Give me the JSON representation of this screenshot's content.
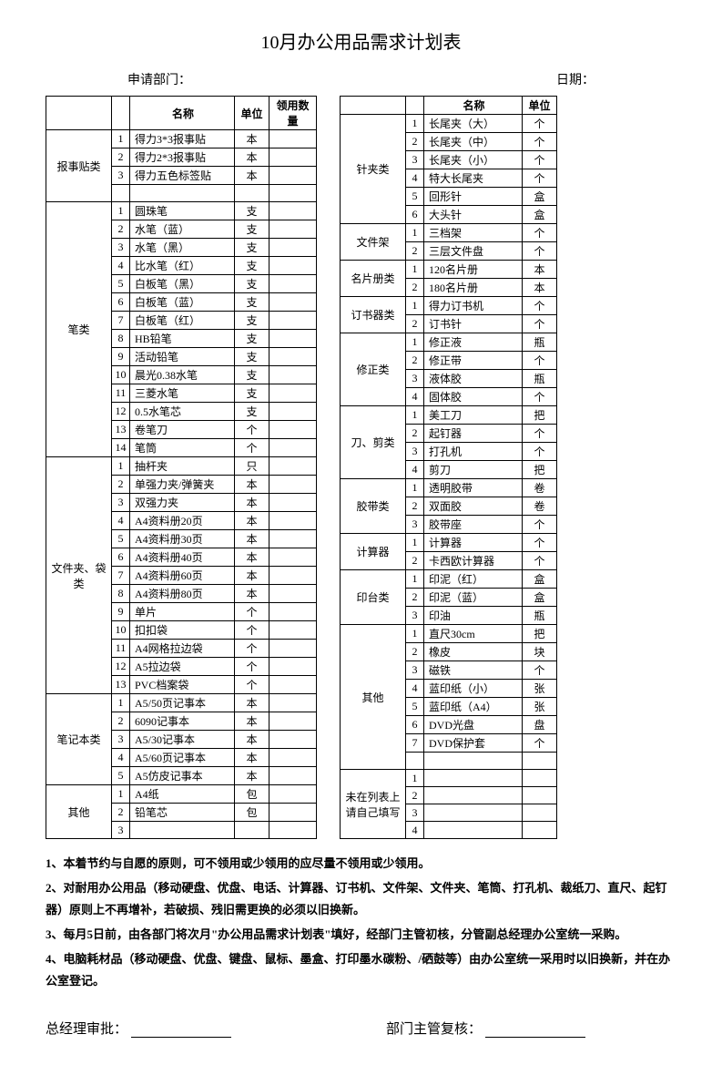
{
  "title": "10月办公用品需求计划表",
  "header": {
    "dept_label": "申请部门：",
    "date_label": "日期："
  },
  "left_table": {
    "headers": {
      "name": "名称",
      "unit": "单位",
      "qty": "领用数量"
    },
    "groups": [
      {
        "category": "报事贴类",
        "rows": [
          {
            "n": "1",
            "name": "得力3*3报事贴",
            "unit": "本"
          },
          {
            "n": "2",
            "name": "得力2*3报事贴",
            "unit": "本"
          },
          {
            "n": "3",
            "name": "得力五色标签贴",
            "unit": "本"
          }
        ],
        "blank": 1
      },
      {
        "category": "笔类",
        "rows": [
          {
            "n": "1",
            "name": "圆珠笔",
            "unit": "支"
          },
          {
            "n": "2",
            "name": "水笔（蓝）",
            "unit": "支"
          },
          {
            "n": "3",
            "name": "水笔（黑）",
            "unit": "支"
          },
          {
            "n": "4",
            "name": "比水笔（红）",
            "unit": "支"
          },
          {
            "n": "5",
            "name": "白板笔（黑）",
            "unit": "支"
          },
          {
            "n": "6",
            "name": "白板笔（蓝）",
            "unit": "支"
          },
          {
            "n": "7",
            "name": "白板笔（红）",
            "unit": "支"
          },
          {
            "n": "8",
            "name": "HB铅笔",
            "unit": "支"
          },
          {
            "n": "9",
            "name": "活动铅笔",
            "unit": "支"
          },
          {
            "n": "10",
            "name": "晨光0.38水笔",
            "unit": "支"
          },
          {
            "n": "11",
            "name": "三菱水笔",
            "unit": "支"
          },
          {
            "n": "12",
            "name": "0.5水笔芯",
            "unit": "支"
          },
          {
            "n": "13",
            "name": "卷笔刀",
            "unit": "个"
          },
          {
            "n": "14",
            "name": "笔筒",
            "unit": "个"
          }
        ],
        "blank": 0
      },
      {
        "category": "文件夹、袋类",
        "rows": [
          {
            "n": "1",
            "name": "抽杆夹",
            "unit": "只"
          },
          {
            "n": "2",
            "name": "单强力夹/弹簧夹",
            "unit": "本"
          },
          {
            "n": "3",
            "name": "双强力夹",
            "unit": "本"
          },
          {
            "n": "4",
            "name": "A4资料册20页",
            "unit": "本"
          },
          {
            "n": "5",
            "name": "A4资料册30页",
            "unit": "本"
          },
          {
            "n": "6",
            "name": "A4资料册40页",
            "unit": "本"
          },
          {
            "n": "7",
            "name": "A4资料册60页",
            "unit": "本"
          },
          {
            "n": "8",
            "name": "A4资料册80页",
            "unit": "本"
          },
          {
            "n": "9",
            "name": "单片",
            "unit": "个"
          },
          {
            "n": "10",
            "name": "扣扣袋",
            "unit": "个"
          },
          {
            "n": "11",
            "name": "A4网格拉边袋",
            "unit": "个"
          },
          {
            "n": "12",
            "name": "A5拉边袋",
            "unit": "个"
          },
          {
            "n": "13",
            "name": "PVC档案袋",
            "unit": "个"
          }
        ],
        "blank": 0
      },
      {
        "category": "笔记本类",
        "rows": [
          {
            "n": "1",
            "name": "A5/50页记事本",
            "unit": "本"
          },
          {
            "n": "2",
            "name": "6090记事本",
            "unit": "本"
          },
          {
            "n": "3",
            "name": "A5/30记事本",
            "unit": "本"
          },
          {
            "n": "4",
            "name": "A5/60页记事本",
            "unit": "本"
          },
          {
            "n": "5",
            "name": "A5仿皮记事本",
            "unit": "本"
          }
        ],
        "blank": 0
      },
      {
        "category": "其他",
        "rows": [
          {
            "n": "1",
            "name": "A4纸",
            "unit": "包"
          },
          {
            "n": "2",
            "name": "铅笔芯",
            "unit": "包"
          },
          {
            "n": "3",
            "name": "",
            "unit": ""
          }
        ],
        "blank": 0
      }
    ]
  },
  "right_table": {
    "headers": {
      "name": "名称",
      "unit": "单位"
    },
    "groups": [
      {
        "category": "针夹类",
        "rows": [
          {
            "n": "1",
            "name": "长尾夹（大）",
            "unit": "个"
          },
          {
            "n": "2",
            "name": "长尾夹（中）",
            "unit": "个"
          },
          {
            "n": "3",
            "name": "长尾夹（小）",
            "unit": "个"
          },
          {
            "n": "4",
            "name": "特大长尾夹",
            "unit": "个"
          },
          {
            "n": "5",
            "name": "回形针",
            "unit": "盒"
          },
          {
            "n": "6",
            "name": "大头针",
            "unit": "盒"
          }
        ],
        "blank": 0
      },
      {
        "category": "文件架",
        "rows": [
          {
            "n": "1",
            "name": "三档架",
            "unit": "个"
          },
          {
            "n": "2",
            "name": "三层文件盘",
            "unit": "个"
          }
        ],
        "blank": 0
      },
      {
        "category": "名片册类",
        "rows": [
          {
            "n": "1",
            "name": "120名片册",
            "unit": "本"
          },
          {
            "n": "2",
            "name": "180名片册",
            "unit": "本"
          }
        ],
        "blank": 0
      },
      {
        "category": "订书器类",
        "rows": [
          {
            "n": "1",
            "name": "得力订书机",
            "unit": "个"
          },
          {
            "n": "2",
            "name": "订书针",
            "unit": "个"
          }
        ],
        "blank": 0
      },
      {
        "category": "修正类",
        "rows": [
          {
            "n": "1",
            "name": "修正液",
            "unit": "瓶"
          },
          {
            "n": "2",
            "name": "修正带",
            "unit": "个"
          },
          {
            "n": "3",
            "name": "液体胶",
            "unit": "瓶"
          },
          {
            "n": "4",
            "name": "固体胶",
            "unit": "个"
          }
        ],
        "blank": 0
      },
      {
        "category": "刀、剪类",
        "rows": [
          {
            "n": "1",
            "name": "美工刀",
            "unit": "把"
          },
          {
            "n": "2",
            "name": "起钉器",
            "unit": "个"
          },
          {
            "n": "3",
            "name": "打孔机",
            "unit": "个"
          },
          {
            "n": "4",
            "name": "剪刀",
            "unit": "把"
          }
        ],
        "blank": 0
      },
      {
        "category": "胶带类",
        "rows": [
          {
            "n": "1",
            "name": "透明胶带",
            "unit": "卷"
          },
          {
            "n": "2",
            "name": "双面胶",
            "unit": "卷"
          },
          {
            "n": "3",
            "name": "胶带座",
            "unit": "个"
          }
        ],
        "blank": 0
      },
      {
        "category": "计算器",
        "rows": [
          {
            "n": "1",
            "name": "计算器",
            "unit": "个"
          },
          {
            "n": "2",
            "name": "卡西欧计算器",
            "unit": "个"
          }
        ],
        "blank": 0
      },
      {
        "category": "印台类",
        "rows": [
          {
            "n": "1",
            "name": "印泥（红）",
            "unit": "盒"
          },
          {
            "n": "2",
            "name": "印泥（蓝）",
            "unit": "盒"
          },
          {
            "n": "3",
            "name": "印油",
            "unit": "瓶"
          }
        ],
        "blank": 0
      },
      {
        "category": "其他",
        "rows": [
          {
            "n": "1",
            "name": "直尺30cm",
            "unit": "把"
          },
          {
            "n": "2",
            "name": "橡皮",
            "unit": "块"
          },
          {
            "n": "3",
            "name": "磁铁",
            "unit": "个"
          },
          {
            "n": "4",
            "name": "蓝印纸（小）",
            "unit": "张"
          },
          {
            "n": "5",
            "name": "蓝印纸（A4）",
            "unit": "张"
          },
          {
            "n": "6",
            "name": "DVD光盘",
            "unit": "盘"
          },
          {
            "n": "7",
            "name": "DVD保护套",
            "unit": "个"
          }
        ],
        "blank": 1
      },
      {
        "category": "未在列表上请自己填写",
        "rows": [
          {
            "n": "1",
            "name": "",
            "unit": ""
          },
          {
            "n": "2",
            "name": "",
            "unit": ""
          },
          {
            "n": "3",
            "name": "",
            "unit": ""
          },
          {
            "n": "4",
            "name": "",
            "unit": ""
          }
        ],
        "blank": 0
      }
    ]
  },
  "notes": {
    "p1": "1、本着节约与自愿的原则，可不领用或少领用的应尽量不领用或少领用。",
    "p2": "2、对耐用办公用品（移动硬盘、优盘、电话、计算器、订书机、文件架、文件夹、笔筒、打孔机、裁纸刀、直尺、起钉器）原则上不再增补，若破损、残旧需更换的必须以旧换新。",
    "p3": "3、每月5日前，由各部门将次月\"办公用品需求计划表\"填好，经部门主管初核，分管副总经理办公室统一采购。",
    "p4": "4、电脑耗材品（移动硬盘、优盘、键盘、鼠标、墨盒、打印墨水碳粉、/硒鼓等）由办公室统一采用时以旧换新，并在办公室登记。"
  },
  "signatures": {
    "gm": "总经理审批：",
    "mgr": "部门主管复核："
  }
}
